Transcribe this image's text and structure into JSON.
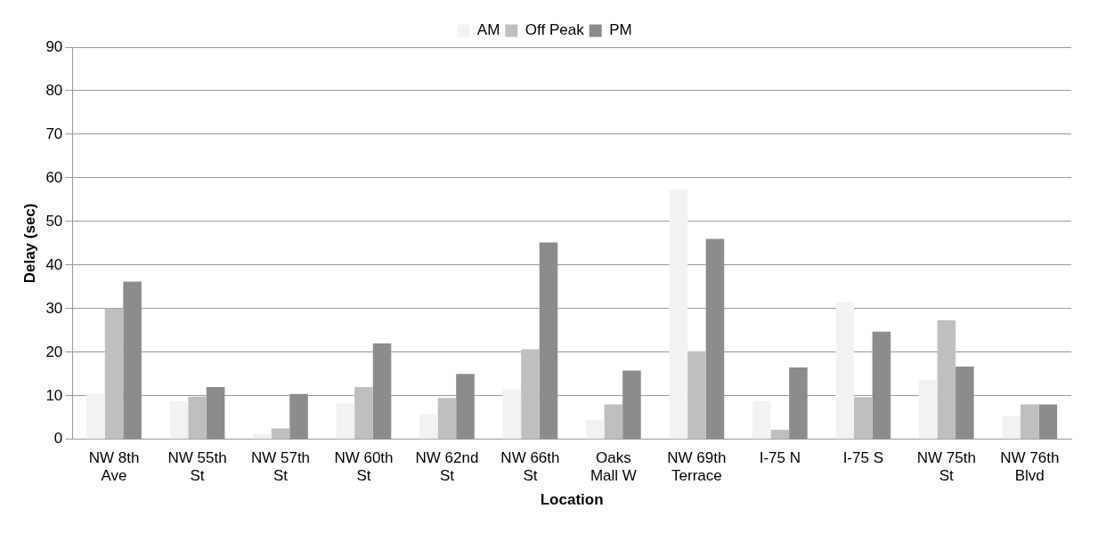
{
  "chart_data": {
    "type": "bar",
    "xlabel": "Location",
    "ylabel": "Delay (sec)",
    "categories": [
      "NW 8th Ave",
      "NW 55th St",
      "NW 57th St",
      "NW 60th St",
      "NW 62nd St",
      "NW 66th St",
      "Oaks Mall W",
      "NW 69th Terrace",
      "I-75 N",
      "I-75 S",
      "NW 75th St",
      "NW 76th Blvd"
    ],
    "series": [
      {
        "name": "AM",
        "color": "#f2f2f2",
        "values": [
          10.5,
          8.8,
          1.3,
          8.3,
          5.8,
          11.5,
          4.5,
          57.3,
          8.8,
          31.5,
          13.7,
          5.3
        ]
      },
      {
        "name": "Off Peak",
        "color": "#bfbfbf",
        "values": [
          30,
          9.8,
          2.5,
          12,
          9.5,
          20.7,
          8,
          20.2,
          2.2,
          9.7,
          27.3,
          8
        ]
      },
      {
        "name": "PM",
        "color": "#8c8c8c",
        "values": [
          36.2,
          12,
          10.4,
          22,
          15,
          45.2,
          15.8,
          46,
          16.5,
          24.7,
          16.7,
          8
        ]
      }
    ],
    "ylim": [
      0,
      90
    ],
    "yticks": [
      0,
      10,
      20,
      30,
      40,
      50,
      60,
      70,
      80,
      90
    ],
    "grid": "y",
    "legend": "top"
  }
}
